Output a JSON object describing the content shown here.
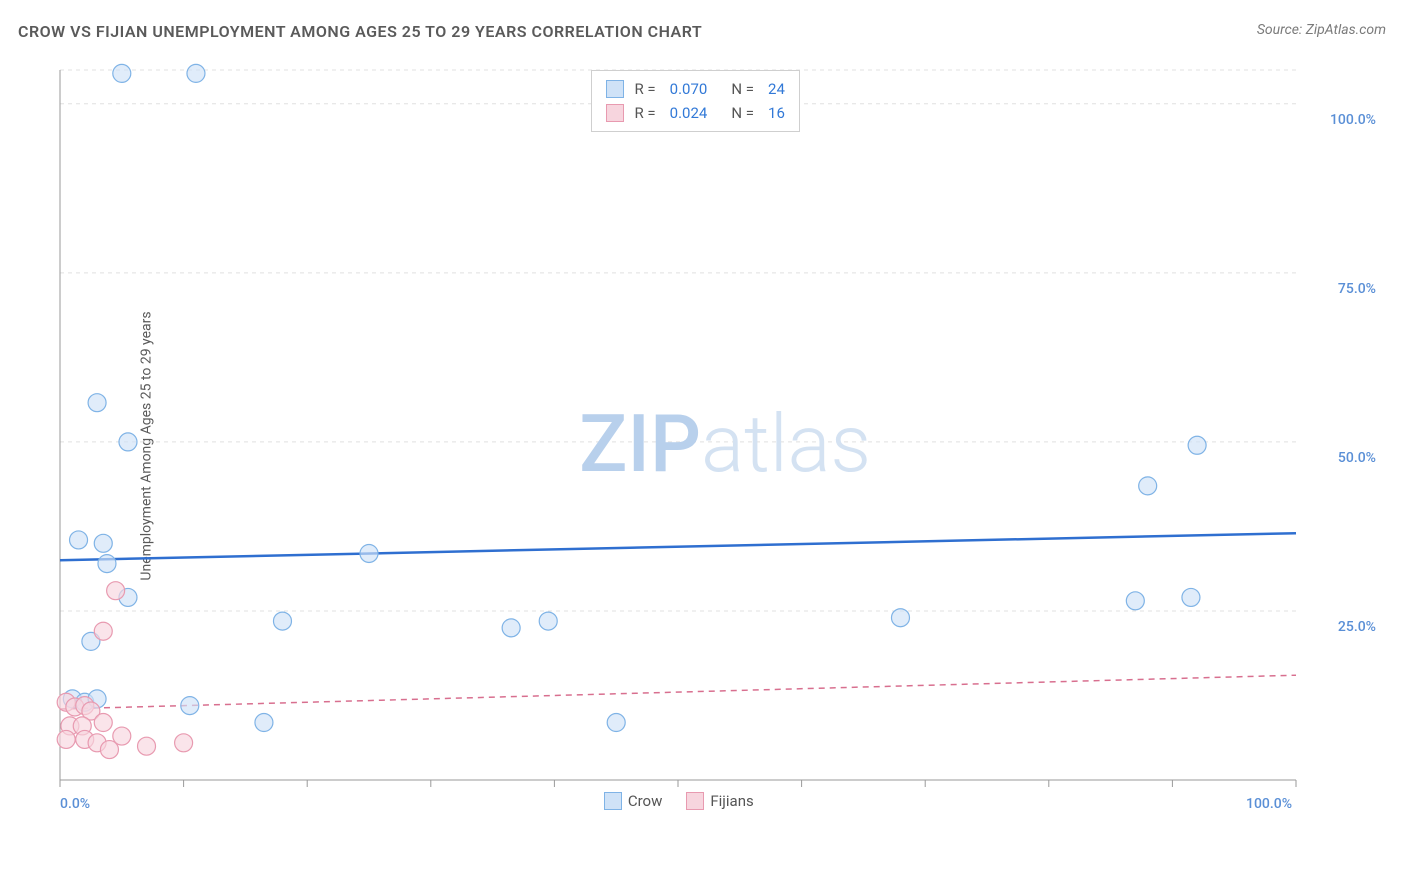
{
  "title": "CROW VS FIJIAN UNEMPLOYMENT AMONG AGES 25 TO 29 YEARS CORRELATION CHART",
  "source_label": "Source: ",
  "source_value": "ZipAtlas.com",
  "ylabel": "Unemployment Among Ages 25 to 29 years",
  "watermark_bold": "ZIP",
  "watermark_light": "atlas",
  "watermark_color_bold": "#b8d0ec",
  "watermark_color_light": "#d4e2f2",
  "chart": {
    "type": "scatter",
    "xlim": [
      0,
      100
    ],
    "ylim": [
      0,
      105
    ],
    "ytick_positions": [
      25,
      50,
      75,
      100
    ],
    "ytick_labels": [
      "25.0%",
      "50.0%",
      "75.0%",
      "100.0%"
    ],
    "xtick_positions": [
      0,
      100
    ],
    "xtick_labels": [
      "0.0%",
      "100.0%"
    ],
    "xtick_minor": [
      10,
      20,
      30,
      40,
      50,
      60,
      70,
      80,
      90
    ],
    "grid_color": "#e0e0e0",
    "grid_dash": "4,4",
    "axis_color": "#9a9a9a",
    "background_color": "#ffffff",
    "marker_radius": 9,
    "marker_stroke_width": 1.2,
    "series": [
      {
        "name": "Crow",
        "fill": "#cfe2f7",
        "stroke": "#7fb3e6",
        "fill_opacity": 0.65,
        "line_color": "#2f6fd0",
        "line_width": 2.5,
        "line_dash": "none",
        "regression": {
          "y_at_x0": 32.5,
          "y_at_x100": 36.5
        },
        "points": [
          {
            "x": 5.0,
            "y": 104.5
          },
          {
            "x": 11.0,
            "y": 104.5
          },
          {
            "x": 3.0,
            "y": 55.8
          },
          {
            "x": 5.5,
            "y": 50.0
          },
          {
            "x": 92.0,
            "y": 49.5
          },
          {
            "x": 88.0,
            "y": 43.5
          },
          {
            "x": 1.5,
            "y": 35.5
          },
          {
            "x": 3.5,
            "y": 35.0
          },
          {
            "x": 3.8,
            "y": 32.0
          },
          {
            "x": 25.0,
            "y": 33.5
          },
          {
            "x": 5.5,
            "y": 27.0
          },
          {
            "x": 87.0,
            "y": 26.5
          },
          {
            "x": 91.5,
            "y": 27.0
          },
          {
            "x": 18.0,
            "y": 23.5
          },
          {
            "x": 36.5,
            "y": 22.5
          },
          {
            "x": 39.5,
            "y": 23.5
          },
          {
            "x": 68.0,
            "y": 24.0
          },
          {
            "x": 2.5,
            "y": 20.5
          },
          {
            "x": 1.0,
            "y": 12.0
          },
          {
            "x": 2.0,
            "y": 11.5
          },
          {
            "x": 3.0,
            "y": 12.0
          },
          {
            "x": 10.5,
            "y": 11.0
          },
          {
            "x": 16.5,
            "y": 8.5
          },
          {
            "x": 45.0,
            "y": 8.5
          }
        ]
      },
      {
        "name": "Fijians",
        "fill": "#f7d5de",
        "stroke": "#e89ab0",
        "fill_opacity": 0.65,
        "line_color": "#d86f8f",
        "line_width": 1.5,
        "line_dash": "6,5",
        "regression": {
          "y_at_x0": 10.5,
          "y_at_x100": 15.5
        },
        "points": [
          {
            "x": 4.5,
            "y": 28.0
          },
          {
            "x": 3.5,
            "y": 22.0
          },
          {
            "x": 0.5,
            "y": 11.5
          },
          {
            "x": 1.2,
            "y": 10.8
          },
          {
            "x": 2.0,
            "y": 11.0
          },
          {
            "x": 2.5,
            "y": 10.2
          },
          {
            "x": 0.8,
            "y": 8.0
          },
          {
            "x": 1.8,
            "y": 8.0
          },
          {
            "x": 3.5,
            "y": 8.5
          },
          {
            "x": 0.5,
            "y": 6.0
          },
          {
            "x": 2.0,
            "y": 6.0
          },
          {
            "x": 3.0,
            "y": 5.5
          },
          {
            "x": 5.0,
            "y": 6.5
          },
          {
            "x": 4.0,
            "y": 4.5
          },
          {
            "x": 7.0,
            "y": 5.0
          },
          {
            "x": 10.0,
            "y": 5.5
          }
        ]
      }
    ],
    "legend_top": {
      "rows": [
        {
          "swatch_fill": "#cfe2f7",
          "swatch_stroke": "#7fb3e6",
          "r_label": "R =",
          "r_value": "0.070",
          "n_label": "N =",
          "n_value": "24"
        },
        {
          "swatch_fill": "#f7d5de",
          "swatch_stroke": "#e89ab0",
          "r_label": "R =",
          "r_value": "0.024",
          "n_label": "N =",
          "n_value": "16"
        }
      ]
    },
    "legend_bottom": {
      "items": [
        {
          "swatch_fill": "#cfe2f7",
          "swatch_stroke": "#7fb3e6",
          "label": "Crow"
        },
        {
          "swatch_fill": "#f7d5de",
          "swatch_stroke": "#e89ab0",
          "label": "Fijians"
        }
      ]
    }
  }
}
